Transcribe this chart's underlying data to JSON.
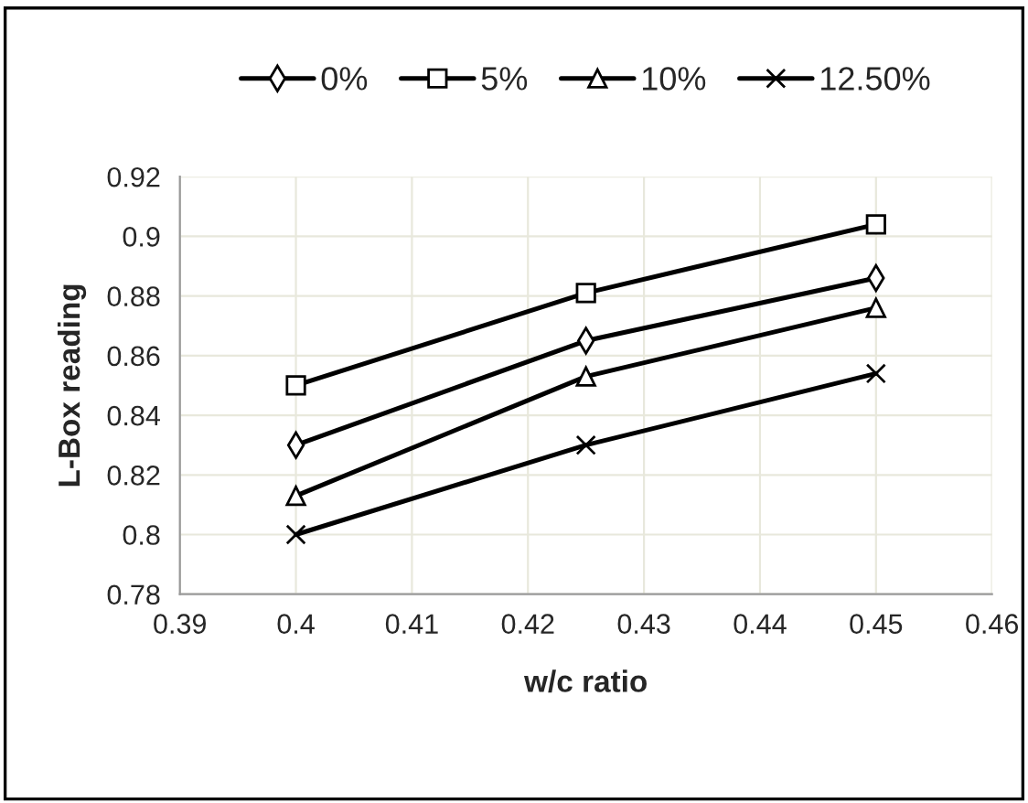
{
  "chart_data": {
    "type": "line",
    "xlabel": "w/c ratio",
    "ylabel": "L-Box reading",
    "x": [
      0.4,
      0.425,
      0.45
    ],
    "series": [
      {
        "name": "0%",
        "color": "#000000",
        "marker": "diamond",
        "values": [
          0.83,
          0.865,
          0.886
        ]
      },
      {
        "name": "5%",
        "color": "#000000",
        "marker": "square",
        "values": [
          0.85,
          0.881,
          0.904
        ]
      },
      {
        "name": "10%",
        "color": "#000000",
        "marker": "triangle",
        "values": [
          0.813,
          0.853,
          0.876
        ]
      },
      {
        "name": "12.50%",
        "color": "#000000",
        "marker": "cross",
        "values": [
          0.8,
          0.83,
          0.854
        ]
      }
    ],
    "xlim": [
      0.39,
      0.46
    ],
    "xticks": [
      0.39,
      0.4,
      0.41,
      0.42,
      0.43,
      0.44,
      0.45,
      0.46
    ],
    "ylim": [
      0.78,
      0.92
    ],
    "yticks": [
      0.78,
      0.8,
      0.82,
      0.84,
      0.86,
      0.88,
      0.9,
      0.92
    ],
    "grid": true,
    "legend": "top",
    "line_style": "solid"
  }
}
